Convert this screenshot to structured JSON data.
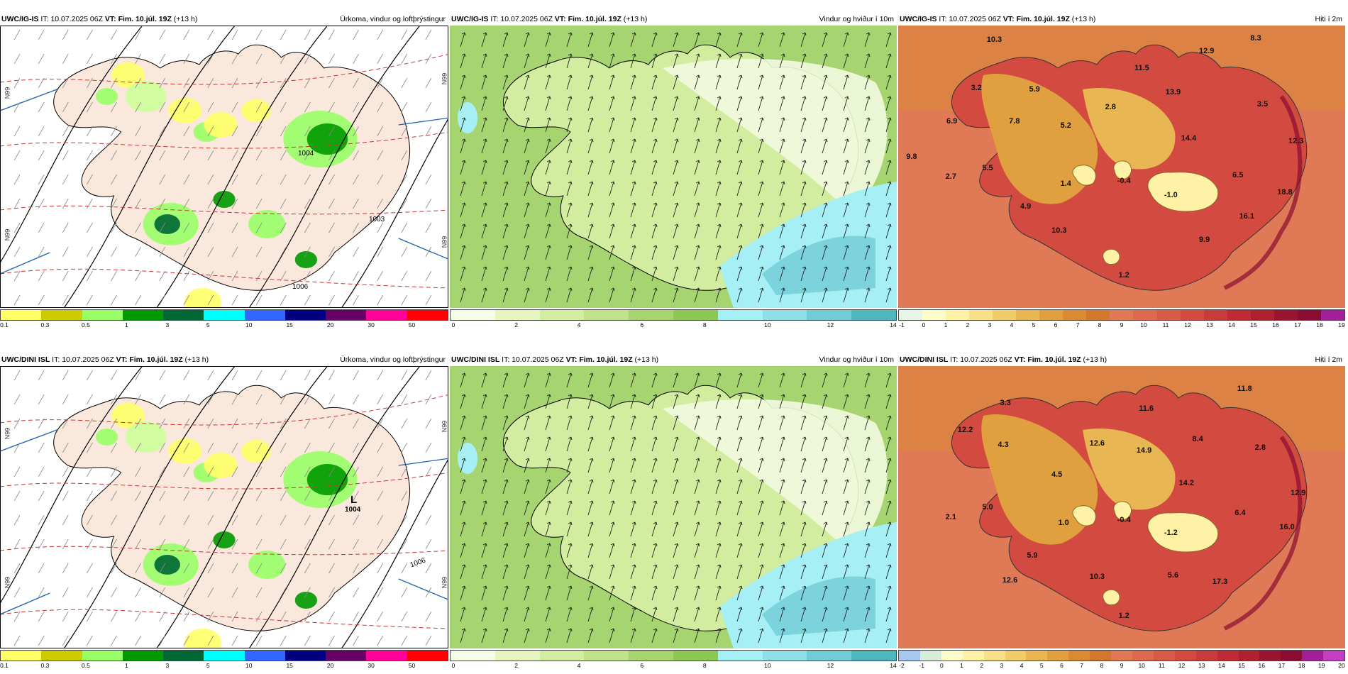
{
  "panels": [
    {
      "model": "UWC/IG-IS",
      "it_label": "IT:",
      "it_value": "10.07.2025 06Z",
      "vt_label": "VT:",
      "vt_value": "Fim. 10.júl. 19Z",
      "lead": "(+13 h)",
      "title": "Úrkoma, vindur og loftþrýstingur",
      "colors": [
        "#ffff66",
        "#cccc00",
        "#99ff66",
        "#009900",
        "#006633",
        "#00ffff",
        "#3366ff",
        "#000080",
        "#660066",
        "#ff0099",
        "#ff0000"
      ],
      "ticks": [
        "0.1",
        "0.3",
        "0.5",
        "1",
        "3",
        "5",
        "10",
        "15",
        "20",
        "30",
        "50"
      ],
      "pressure_labels": [
        "1004",
        "1006",
        "1003"
      ],
      "side_labels": [
        "N99",
        "N99",
        "N99",
        "N99"
      ]
    },
    {
      "model": "UWC/IG-IS",
      "it_label": "IT:",
      "it_value": "10.07.2025 06Z",
      "vt_label": "VT:",
      "vt_value": "Fim. 10.júl. 19Z",
      "lead": "(+13 h)",
      "title": "Vindur og hviður í 10m",
      "colors": [
        "#f5fde6",
        "#e6f5c0",
        "#d2ecA0",
        "#bfe28a",
        "#a6d470",
        "#8cc653",
        "#a6f0f5",
        "#8ee0e6",
        "#72ccd6",
        "#4fb5bf"
      ],
      "ticks": [
        "0",
        "2",
        "4",
        "6",
        "8",
        "10",
        "12",
        "14"
      ]
    },
    {
      "model": "UWC/IG-IS",
      "it_label": "IT:",
      "it_value": "10.07.2025 06Z",
      "vt_label": "VT:",
      "vt_value": "Fim. 10.júl. 19Z",
      "lead": "(+13 h)",
      "title": "Hiti í 2m",
      "colors": [
        "#e6f5e6",
        "#fffccc",
        "#fff2a6",
        "#f8e089",
        "#f1cc6a",
        "#e8b652",
        "#e0a040",
        "#d98a33",
        "#d4762e",
        "#e07a56",
        "#dd6a4e",
        "#d95a46",
        "#d24a40",
        "#c93a3a",
        "#be2a35",
        "#b02030",
        "#9c1530",
        "#8a0c30",
        "#a0209a"
      ],
      "ticks": [
        "-1",
        "0",
        "1",
        "2",
        "3",
        "4",
        "5",
        "6",
        "7",
        "8",
        "9",
        "10",
        "11",
        "12",
        "13",
        "14",
        "15",
        "16",
        "17",
        "18",
        "19"
      ],
      "values": [
        {
          "t": "10.3",
          "x": 0.215,
          "y": 0.05
        },
        {
          "t": "8.3",
          "x": 0.8,
          "y": 0.045
        },
        {
          "t": "12.9",
          "x": 0.69,
          "y": 0.09
        },
        {
          "t": "11.5",
          "x": 0.545,
          "y": 0.15
        },
        {
          "t": "3.2",
          "x": 0.175,
          "y": 0.22
        },
        {
          "t": "5.9",
          "x": 0.305,
          "y": 0.225
        },
        {
          "t": "13.9",
          "x": 0.615,
          "y": 0.235
        },
        {
          "t": "3.5",
          "x": 0.815,
          "y": 0.28
        },
        {
          "t": "2.8",
          "x": 0.475,
          "y": 0.29
        },
        {
          "t": "6.9",
          "x": 0.12,
          "y": 0.34
        },
        {
          "t": "7.8",
          "x": 0.26,
          "y": 0.34
        },
        {
          "t": "5.2",
          "x": 0.375,
          "y": 0.355
        },
        {
          "t": "14.4",
          "x": 0.65,
          "y": 0.4
        },
        {
          "t": "12.3",
          "x": 0.89,
          "y": 0.41
        },
        {
          "t": "9.8",
          "x": 0.03,
          "y": 0.465
        },
        {
          "t": "5.5",
          "x": 0.2,
          "y": 0.505
        },
        {
          "t": "2.7",
          "x": 0.118,
          "y": 0.535
        },
        {
          "t": "6.5",
          "x": 0.76,
          "y": 0.53
        },
        {
          "t": "1.4",
          "x": 0.375,
          "y": 0.56
        },
        {
          "t": "-0.4",
          "x": 0.505,
          "y": 0.55
        },
        {
          "t": "-1.0",
          "x": 0.61,
          "y": 0.6
        },
        {
          "t": "18.8",
          "x": 0.865,
          "y": 0.59
        },
        {
          "t": "4.9",
          "x": 0.285,
          "y": 0.64
        },
        {
          "t": "16.1",
          "x": 0.78,
          "y": 0.675
        },
        {
          "t": "10.3",
          "x": 0.36,
          "y": 0.725
        },
        {
          "t": "9.9",
          "x": 0.685,
          "y": 0.76
        },
        {
          "t": "1.2",
          "x": 0.505,
          "y": 0.885
        }
      ]
    },
    {
      "model": "UWC/DINI ISL",
      "it_label": "IT:",
      "it_value": "10.07.2025 06Z",
      "vt_label": "VT:",
      "vt_value": "Fim. 10.júl. 19Z",
      "lead": "(+13 h)",
      "title": "Úrkoma, vindur og loftþrýstingur",
      "colors": [
        "#ffff66",
        "#cccc00",
        "#99ff66",
        "#009900",
        "#006633",
        "#00ffff",
        "#3366ff",
        "#000080",
        "#660066",
        "#ff0099",
        "#ff0000"
      ],
      "ticks": [
        "0.1",
        "0.3",
        "0.5",
        "1",
        "3",
        "5",
        "10",
        "15",
        "20",
        "30",
        "50"
      ],
      "pressure_labels": [
        "1006"
      ],
      "low": {
        "letter": "L",
        "value": "1004"
      },
      "side_labels": [
        "N99",
        "N99",
        "N99",
        "N99"
      ]
    },
    {
      "model": "UWC/DINI ISL",
      "it_label": "IT:",
      "it_value": "10.07.2025 06Z",
      "vt_label": "VT:",
      "vt_value": "Fim. 10.júl. 19Z",
      "lead": "(+13 h)",
      "title": "Vindur og hviður í 10m",
      "colors": [
        "#f5fde6",
        "#e6f5c0",
        "#d2ecA0",
        "#bfe28a",
        "#a6d470",
        "#8cc653",
        "#a6f0f5",
        "#8ee0e6",
        "#72ccd6",
        "#4fb5bf"
      ],
      "ticks": [
        "0",
        "2",
        "4",
        "6",
        "8",
        "10",
        "12",
        "14"
      ]
    },
    {
      "model": "UWC/DINI ISL",
      "it_label": "IT:",
      "it_value": "10.07.2025 06Z",
      "vt_label": "VT:",
      "vt_value": "Fim. 10.júl. 19Z",
      "lead": "(+13 h)",
      "title": "Hiti í 2m",
      "colors": [
        "#a8c8f0",
        "#d8ecd8",
        "#fffccc",
        "#fff2a6",
        "#f8e089",
        "#f1cc6a",
        "#e8b652",
        "#e0a040",
        "#d98a33",
        "#d4762e",
        "#e07a56",
        "#dd6a4e",
        "#d95a46",
        "#d24a40",
        "#c93a3a",
        "#be2a35",
        "#b02030",
        "#9c1530",
        "#8a0c30",
        "#a0209a",
        "#c040c0"
      ],
      "ticks": [
        "-2",
        "-1",
        "0",
        "1",
        "2",
        "3",
        "4",
        "5",
        "6",
        "7",
        "8",
        "9",
        "10",
        "11",
        "12",
        "13",
        "14",
        "15",
        "16",
        "17",
        "18",
        "19",
        "20"
      ],
      "values": [
        {
          "t": "11.8",
          "x": 0.775,
          "y": 0.08
        },
        {
          "t": "3.3",
          "x": 0.24,
          "y": 0.13
        },
        {
          "t": "11.6",
          "x": 0.555,
          "y": 0.15
        },
        {
          "t": "12.2",
          "x": 0.15,
          "y": 0.225
        },
        {
          "t": "8.4",
          "x": 0.67,
          "y": 0.26
        },
        {
          "t": "4.3",
          "x": 0.235,
          "y": 0.28
        },
        {
          "t": "12.6",
          "x": 0.445,
          "y": 0.275
        },
        {
          "t": "14.9",
          "x": 0.55,
          "y": 0.3
        },
        {
          "t": "2.8",
          "x": 0.81,
          "y": 0.29
        },
        {
          "t": "4.5",
          "x": 0.355,
          "y": 0.385
        },
        {
          "t": "14.2",
          "x": 0.645,
          "y": 0.415
        },
        {
          "t": "12.9",
          "x": 0.895,
          "y": 0.45
        },
        {
          "t": "5.0",
          "x": 0.2,
          "y": 0.5
        },
        {
          "t": "2.1",
          "x": 0.118,
          "y": 0.535
        },
        {
          "t": "6.4",
          "x": 0.765,
          "y": 0.52
        },
        {
          "t": "1.0",
          "x": 0.37,
          "y": 0.555
        },
        {
          "t": "-0.4",
          "x": 0.505,
          "y": 0.545
        },
        {
          "t": "-1.2",
          "x": 0.61,
          "y": 0.59
        },
        {
          "t": "16.0",
          "x": 0.87,
          "y": 0.57
        },
        {
          "t": "5.9",
          "x": 0.3,
          "y": 0.67
        },
        {
          "t": "12.6",
          "x": 0.25,
          "y": 0.76
        },
        {
          "t": "10.3",
          "x": 0.445,
          "y": 0.745
        },
        {
          "t": "5.6",
          "x": 0.615,
          "y": 0.74
        },
        {
          "t": "17.3",
          "x": 0.72,
          "y": 0.765
        },
        {
          "t": "1.2",
          "x": 0.505,
          "y": 0.885
        }
      ]
    }
  ]
}
